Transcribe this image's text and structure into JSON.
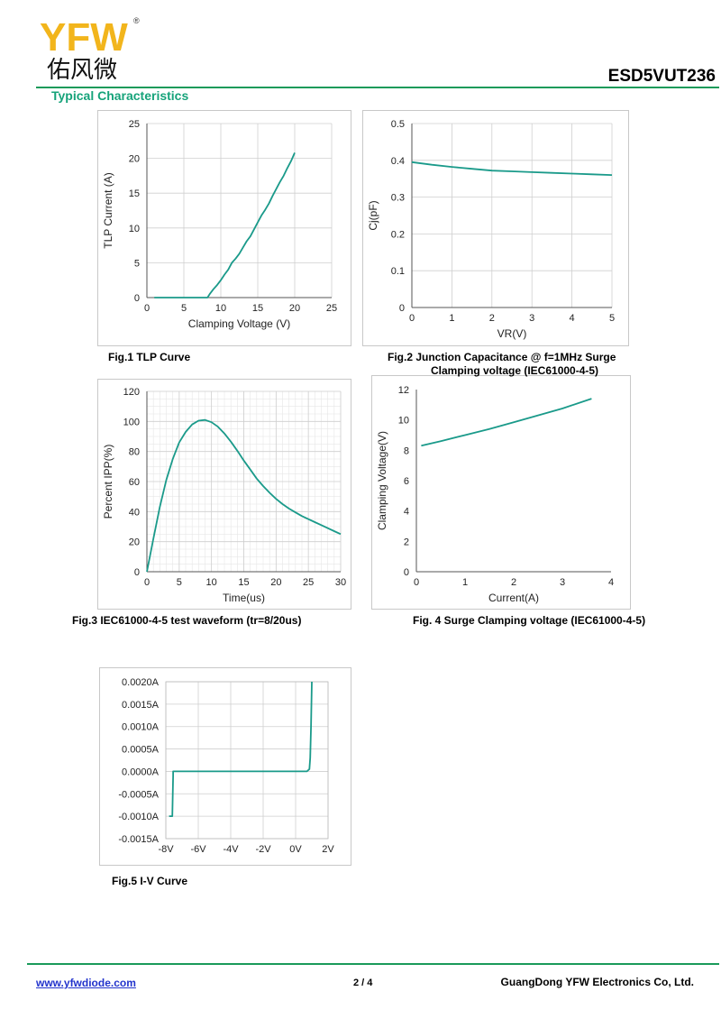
{
  "header": {
    "logo_latin": "YFW",
    "logo_reg": "®",
    "logo_cjk": "佑风微",
    "part_number": "ESD5VUT236",
    "section_title": "Typical Characteristics",
    "brand_colors": {
      "yellow": "#f2b51c",
      "green": "#39b24a",
      "orange": "#f08a1c",
      "teal_line": "#1a9a8a",
      "rule": "#1a9a5a"
    }
  },
  "chart_data": [
    {
      "id": "fig1",
      "type": "line",
      "caption": "Fig.1   TLP   Curve",
      "xlabel": "Clamping Voltage (V)",
      "ylabel": "TLP Current (A)",
      "xlim": [
        0,
        25
      ],
      "ylim": [
        0,
        25
      ],
      "xticks": [
        0,
        5,
        10,
        15,
        20,
        25
      ],
      "yticks": [
        0,
        5,
        10,
        15,
        20,
        25
      ],
      "grid": true,
      "color": "#1a9a8a",
      "x": [
        1,
        8.2,
        8.5,
        9,
        9.5,
        10,
        10.5,
        11,
        11.5,
        12,
        12.5,
        13,
        13.5,
        14,
        14.5,
        15,
        15.5,
        16,
        16.5,
        17,
        17.5,
        18,
        18.5,
        19,
        19.5,
        20
      ],
      "y": [
        0,
        0,
        0.5,
        1.2,
        1.8,
        2.5,
        3.3,
        4.0,
        5.0,
        5.6,
        6.3,
        7.2,
        8.1,
        8.8,
        9.8,
        10.8,
        11.8,
        12.6,
        13.5,
        14.6,
        15.6,
        16.6,
        17.5,
        18.6,
        19.6,
        20.8
      ]
    },
    {
      "id": "fig2",
      "type": "line",
      "caption": "Fig.2 Junction Capacitance @ f=1MHz",
      "xlabel": "VR(V)",
      "ylabel": "Cj(pF)",
      "xlim": [
        0,
        5
      ],
      "ylim": [
        0,
        0.5
      ],
      "xticks": [
        0,
        1,
        2,
        3,
        4,
        5
      ],
      "yticks": [
        0,
        0.1,
        0.2,
        0.3,
        0.4,
        0.5
      ],
      "grid": true,
      "color": "#1a9a8a",
      "x": [
        0,
        0.5,
        1,
        1.5,
        2,
        2.5,
        3,
        3.5,
        4,
        4.5,
        5
      ],
      "y": [
        0.395,
        0.388,
        0.382,
        0.377,
        0.372,
        0.37,
        0.368,
        0.366,
        0.364,
        0.362,
        0.36
      ]
    },
    {
      "id": "fig3",
      "type": "line",
      "caption": "Fig.3 IEC61000-4-5 test waveform (tr=8/20us)",
      "xlabel": "Time(us)",
      "ylabel": "Percent IPP(%)",
      "xlim": [
        0,
        30
      ],
      "ylim": [
        0,
        120
      ],
      "xticks": [
        0,
        5,
        10,
        15,
        20,
        25,
        30
      ],
      "yticks": [
        0,
        20,
        40,
        60,
        80,
        100,
        120
      ],
      "grid": "fine",
      "color": "#1a9a8a",
      "x": [
        0,
        1,
        2,
        3,
        4,
        5,
        6,
        7,
        8,
        9,
        10,
        11,
        12,
        13,
        14,
        15,
        16,
        17,
        18,
        19,
        20,
        21,
        22,
        23,
        24,
        25,
        26,
        27,
        28,
        29,
        30
      ],
      "y": [
        0,
        22,
        43,
        61,
        75,
        86,
        93,
        98,
        100.5,
        101,
        99.5,
        96.5,
        92,
        86.5,
        80.5,
        74,
        68,
        62,
        57,
        52.5,
        48.5,
        45,
        42,
        39.5,
        37,
        35,
        33,
        31,
        29,
        27,
        25
      ]
    },
    {
      "id": "fig4",
      "type": "line",
      "caption_line1": "Surge",
      "caption_line2": "Clamping voltage (IEC61000-4-5)",
      "caption": "Fig. 4 Surge Clamping voltage (IEC61000-4-5)",
      "xlabel": "Current(A)",
      "ylabel": "Clamping Voltage(V)",
      "xlim": [
        0,
        4
      ],
      "ylim": [
        0,
        12
      ],
      "xticks": [
        0,
        1,
        2,
        3,
        4
      ],
      "yticks": [
        0,
        2,
        4,
        6,
        8,
        10,
        12
      ],
      "grid": false,
      "color": "#1a9a8a",
      "x": [
        0.1,
        0.5,
        1,
        1.5,
        2,
        2.5,
        3,
        3.6
      ],
      "y": [
        8.3,
        8.6,
        9.0,
        9.4,
        9.85,
        10.3,
        10.75,
        11.4
      ]
    },
    {
      "id": "fig5",
      "type": "line",
      "caption": "Fig.5  I-V Curve",
      "xlabel": "",
      "ylabel": "",
      "xlim": [
        -8,
        2
      ],
      "ylim": [
        -0.0015,
        0.002
      ],
      "xticks": [
        -8,
        -6,
        -4,
        -2,
        0,
        2
      ],
      "xtick_labels": [
        "-8V",
        "-6V",
        "-4V",
        "-2V",
        "0V",
        "2V"
      ],
      "yticks": [
        -0.0015,
        -0.001,
        -0.0005,
        0,
        0.0005,
        0.001,
        0.0015,
        0.002
      ],
      "ytick_labels": [
        "-0.0015A",
        "-0.0010A",
        "-0.0005A",
        "0.0000A",
        "0.0005A",
        "0.0010A",
        "0.0015A",
        "0.0020A"
      ],
      "grid": true,
      "color": "#1a9a8a",
      "x": [
        -7.8,
        -7.6,
        -7.55,
        -7.55,
        -7.4,
        0.7,
        0.85,
        0.9,
        0.95,
        1.0
      ],
      "y": [
        -0.001,
        -0.001,
        -0.0001,
        0,
        0,
        0,
        5e-05,
        0.0003,
        0.001,
        0.002
      ]
    }
  ],
  "captions": {
    "fig2_line2": "Clamping voltage (IEC61000-4-5)"
  },
  "footer": {
    "website": "www.yfwdiode.com",
    "page": "2 / 4",
    "company": "GuangDong YFW Electronics Co, Ltd."
  }
}
